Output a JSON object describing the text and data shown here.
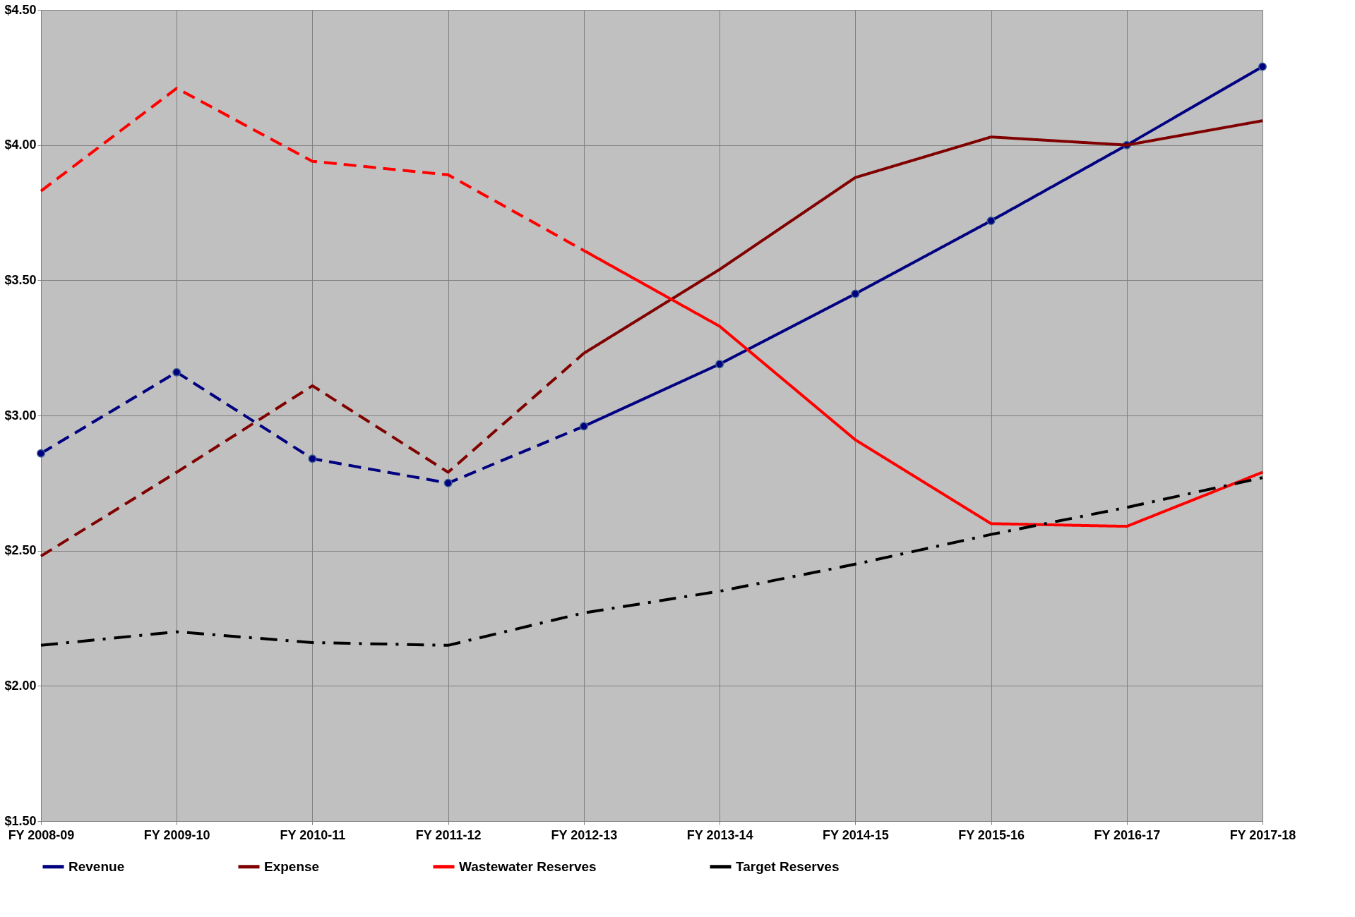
{
  "chart_data": {
    "type": "line",
    "categories": [
      "FY 2008-09",
      "FY 2009-10",
      "FY 2010-11",
      "FY 2011-12",
      "FY 2012-13",
      "FY 2013-14",
      "FY 2014-15",
      "FY 2015-16",
      "FY 2016-17",
      "FY 2017-18"
    ],
    "ylim": [
      1.5,
      4.5
    ],
    "yticks": [
      {
        "value": 1.5,
        "label": "$1.50"
      },
      {
        "value": 2.0,
        "label": "$2.00"
      },
      {
        "value": 2.5,
        "label": "$2.50"
      },
      {
        "value": 3.0,
        "label": "$3.00"
      },
      {
        "value": 3.5,
        "label": "$3.50"
      },
      {
        "value": 4.0,
        "label": "$4.00"
      },
      {
        "value": 4.5,
        "label": "$4.50"
      }
    ],
    "grid": true,
    "legend": "bottom",
    "series": [
      {
        "name": "Revenue",
        "color": "#000080",
        "line_style": [
          "dashed",
          "dashed",
          "dashed",
          "dashed",
          "solid",
          "solid",
          "solid",
          "solid",
          "solid"
        ],
        "marker": "circle",
        "values": [
          2.86,
          3.16,
          2.84,
          2.75,
          2.96,
          3.19,
          3.45,
          3.72,
          4.0,
          4.29
        ]
      },
      {
        "name": "Expense",
        "color": "#800000",
        "line_style": [
          "dashed",
          "dashed",
          "dashed",
          "dashed",
          "solid",
          "solid",
          "solid",
          "solid",
          "solid"
        ],
        "marker": "none",
        "values": [
          2.48,
          2.79,
          3.11,
          2.79,
          3.23,
          3.54,
          3.88,
          4.03,
          4.0,
          4.09
        ]
      },
      {
        "name": "Wastewater Reserves",
        "color": "#ff0000",
        "line_style": [
          "dashed",
          "dashed",
          "dashed",
          "dashed",
          "solid",
          "solid",
          "solid",
          "solid",
          "solid"
        ],
        "marker": "none",
        "values": [
          3.83,
          4.21,
          3.94,
          3.89,
          3.61,
          3.33,
          2.91,
          2.6,
          2.59,
          2.79
        ]
      },
      {
        "name": "Target Reserves",
        "color": "#000000",
        "line_style": "dashdot",
        "marker": "none",
        "values": [
          2.15,
          2.2,
          2.16,
          2.15,
          2.27,
          2.35,
          2.45,
          2.56,
          2.66,
          2.77
        ]
      }
    ]
  }
}
